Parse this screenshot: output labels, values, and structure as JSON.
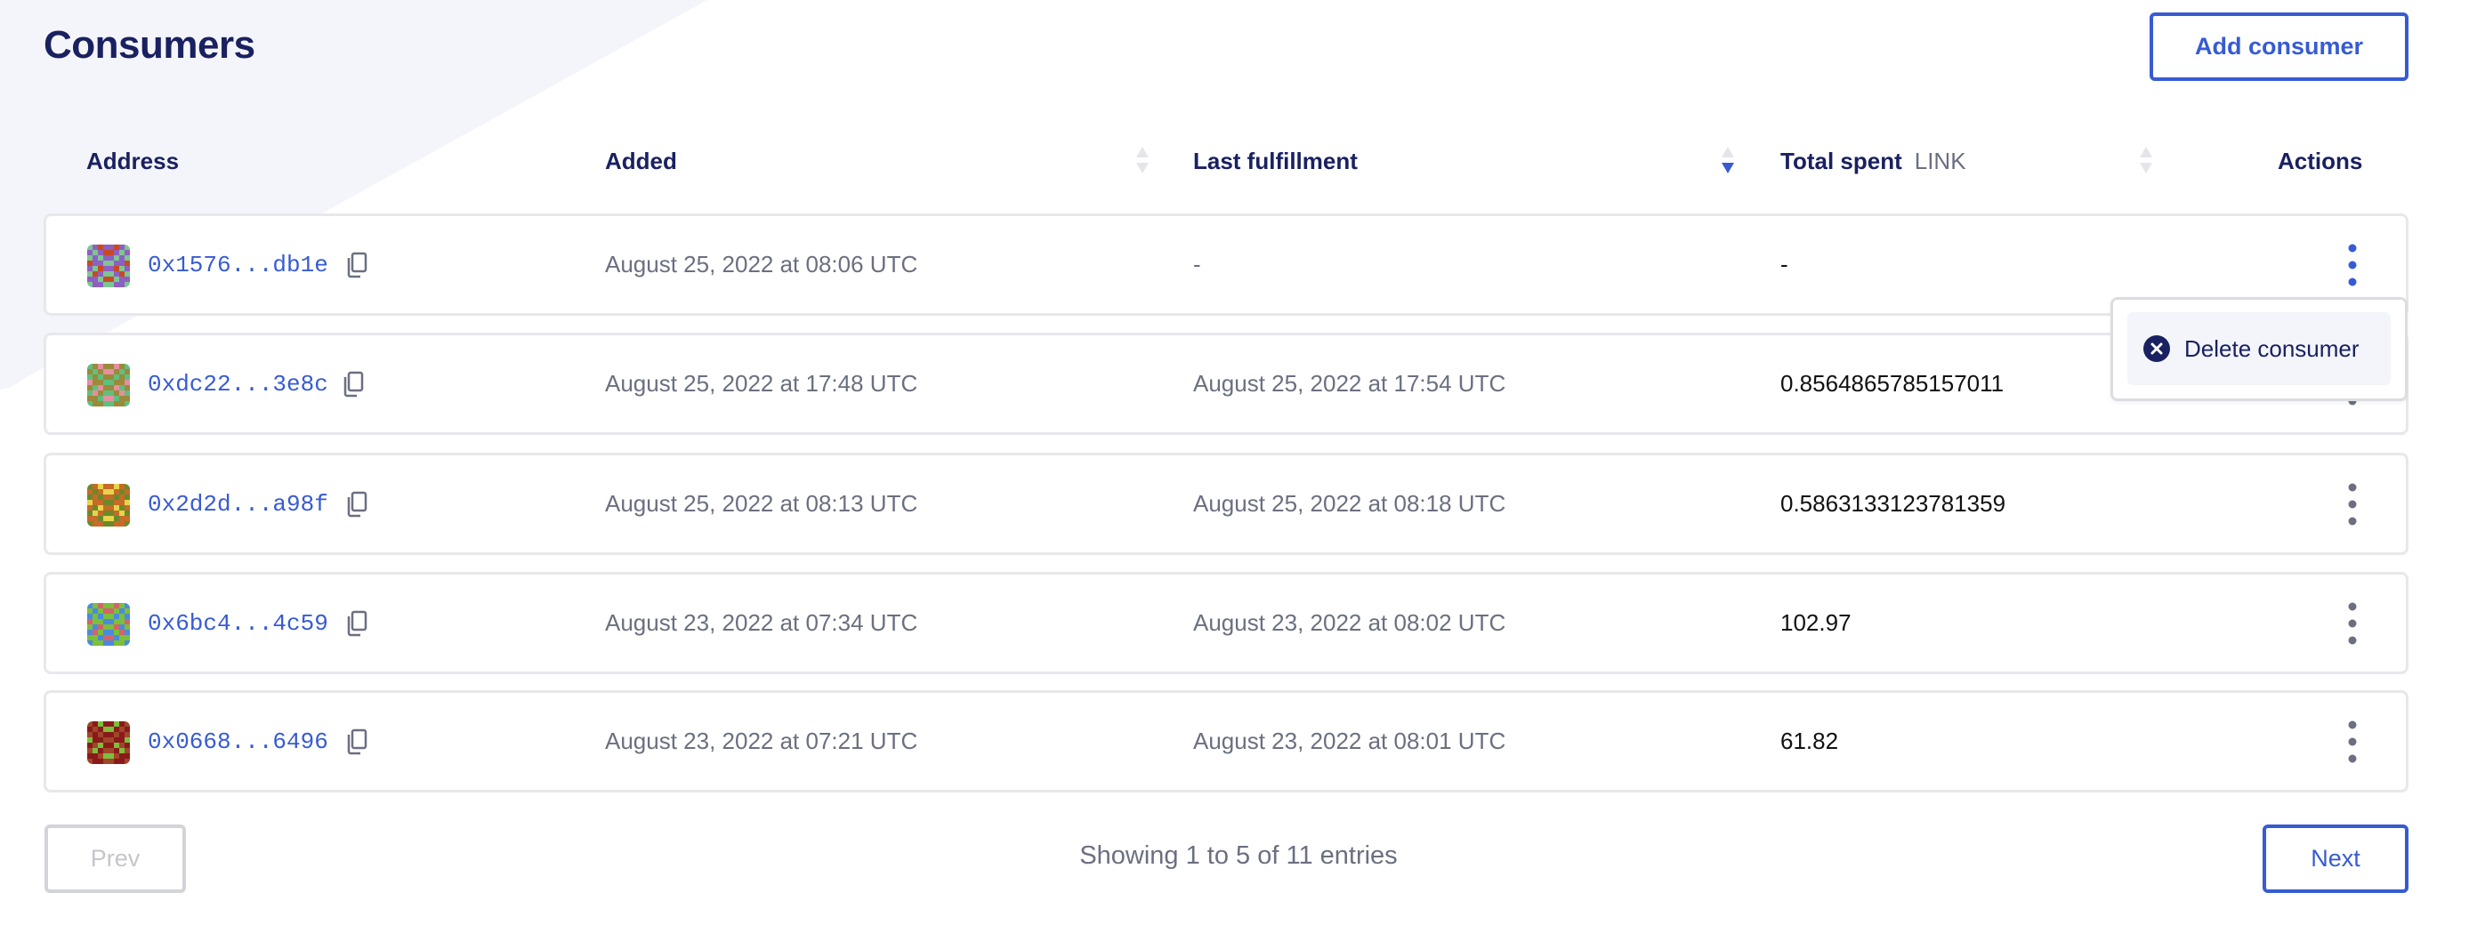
{
  "page": {
    "title": "Consumers",
    "add_button": "Add consumer"
  },
  "colors": {
    "accent": "#375bd2",
    "heading": "#1a2160",
    "muted": "#6b6f80",
    "background_shape": "#f4f5fb"
  },
  "table": {
    "columns": {
      "address": "Address",
      "added": "Added",
      "last_fulfillment": "Last fulfillment",
      "total_spent": "Total spent",
      "total_spent_unit": "LINK",
      "actions": "Actions"
    },
    "sorted_by": "last_fulfillment",
    "sort_direction": "descending",
    "rows": [
      {
        "address": "0x1576...db1e",
        "added": "August 25, 2022 at 08:06 UTC",
        "last_fulfillment": "-",
        "total_spent": "-",
        "identicon": [
          "#7dc68f",
          "#8e5fc4",
          "#c84a22"
        ],
        "menu_open": true
      },
      {
        "address": "0xdc22...3e8c",
        "added": "August 25, 2022 at 17:48 UTC",
        "last_fulfillment": "August 25, 2022 at 17:54 UTC",
        "total_spent": "0.8564865785157011",
        "identicon": [
          "#5fbf7f",
          "#9a8a3a",
          "#e68fa0"
        ]
      },
      {
        "address": "0x2d2d...a98f",
        "added": "August 25, 2022 at 08:13 UTC",
        "last_fulfillment": "August 25, 2022 at 08:18 UTC",
        "total_spent": "0.5863133123781359",
        "identicon": [
          "#6a8a2a",
          "#c86a28",
          "#e6d44a"
        ]
      },
      {
        "address": "0x6bc4...4c59",
        "added": "August 23, 2022 at 07:34 UTC",
        "last_fulfillment": "August 23, 2022 at 08:02 UTC",
        "total_spent": "102.97",
        "identicon": [
          "#4a8ae0",
          "#7cbf3a",
          "#d2646a"
        ]
      },
      {
        "address": "0x0668...6496",
        "added": "August 23, 2022 at 07:21 UTC",
        "last_fulfillment": "August 23, 2022 at 08:01 UTC",
        "total_spent": "61.82",
        "identicon": [
          "#a0462a",
          "#8a1a1a",
          "#7cbf3a"
        ]
      }
    ]
  },
  "row_menu": {
    "delete_label": "Delete consumer"
  },
  "pagination": {
    "prev": "Prev",
    "next": "Next",
    "status": "Showing 1 to 5 of 11 entries",
    "prev_disabled": true
  }
}
